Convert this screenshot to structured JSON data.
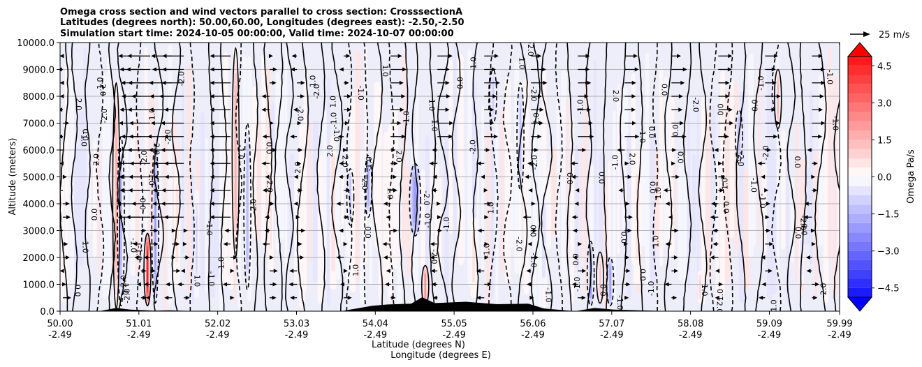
{
  "chart_data": {
    "type": "heatmap",
    "title_lines": [
      "Omega cross section and wind vectors parallel to cross section: CrosssectionA",
      "Latitudes (degrees north): 50.00,60.00, Longitudes (degrees east): -2.50,-2.50",
      "Simulation start time: 2024-10-05 00:00:00, Valid time: 2024-10-07 00:00:00"
    ],
    "ylabel": "Altitude (meters)",
    "xlabel_lines": [
      "Latitude (degrees N)",
      "Longitude (degrees E)"
    ],
    "ylim": [
      0,
      10000
    ],
    "xlim": [
      50.0,
      59.99
    ],
    "y_ticks": [
      0,
      1000,
      2000,
      3000,
      4000,
      5000,
      6000,
      7000,
      8000,
      9000,
      10000
    ],
    "y_tick_labels": [
      "0.0",
      "1000.0",
      "2000.0",
      "3000.0",
      "4000.0",
      "5000.0",
      "6000.0",
      "7000.0",
      "8000.0",
      "9000.0",
      "10000.0"
    ],
    "x_ticks": [
      50.0,
      51.01,
      52.02,
      53.03,
      54.04,
      55.05,
      56.06,
      57.07,
      58.08,
      59.09,
      59.99
    ],
    "x_tick_lat_labels": [
      "50.00",
      "51.01",
      "52.02",
      "53.03",
      "54.04",
      "55.05",
      "56.06",
      "57.07",
      "58.08",
      "59.09",
      "59.99"
    ],
    "x_tick_lon_labels": [
      "-2.49",
      "-2.49",
      "-2.49",
      "-2.49",
      "-2.49",
      "-2.49",
      "-2.49",
      "-2.49",
      "-2.49",
      "-2.49",
      "-2.49"
    ],
    "grid": "horizontal",
    "colorbar": {
      "label": "Omega Pa/s",
      "range": [
        -5.25,
        5.25
      ],
      "levels_step": 0.375,
      "tick_values": [
        4.5,
        3.0,
        1.5,
        0.0,
        -1.5,
        -3.0,
        -4.5
      ],
      "tick_labels": [
        "4.5",
        "3.0",
        "1.5",
        "0.0",
        "−1.5",
        "−3.0",
        "−4.5"
      ],
      "colormap": "bwr",
      "extend": "both"
    },
    "contour_labels": [
      "0.0",
      "1.0",
      "-1.0",
      "2.0",
      "-2.0"
    ],
    "wind_vector_key": "25 m/s",
    "terrain": [
      {
        "lat": 50.0,
        "alt": 0
      },
      {
        "lat": 50.5,
        "alt": 0
      },
      {
        "lat": 50.72,
        "alt": 120
      },
      {
        "lat": 50.9,
        "alt": 60
      },
      {
        "lat": 51.2,
        "alt": 20
      },
      {
        "lat": 51.4,
        "alt": 30
      },
      {
        "lat": 51.8,
        "alt": 0
      },
      {
        "lat": 53.6,
        "alt": 0
      },
      {
        "lat": 54.0,
        "alt": 200
      },
      {
        "lat": 54.2,
        "alt": 250
      },
      {
        "lat": 54.5,
        "alt": 280
      },
      {
        "lat": 54.64,
        "alt": 520
      },
      {
        "lat": 54.8,
        "alt": 300
      },
      {
        "lat": 55.2,
        "alt": 350
      },
      {
        "lat": 55.6,
        "alt": 260
      },
      {
        "lat": 56.0,
        "alt": 280
      },
      {
        "lat": 56.2,
        "alt": 100
      },
      {
        "lat": 56.6,
        "alt": 0
      },
      {
        "lat": 56.85,
        "alt": 120
      },
      {
        "lat": 57.1,
        "alt": 60
      },
      {
        "lat": 57.4,
        "alt": 30
      },
      {
        "lat": 57.9,
        "alt": 0
      },
      {
        "lat": 59.99,
        "alt": 0
      }
    ],
    "features": [
      {
        "lat": 50.72,
        "alt_min": 100,
        "alt_max": 8500,
        "omega": 1.5,
        "width": 0.07
      },
      {
        "lat": 50.78,
        "alt_min": 200,
        "alt_max": 6500,
        "omega": -1.8,
        "width": 0.05
      },
      {
        "lat": 51.12,
        "alt_min": 200,
        "alt_max": 2900,
        "omega": 4.8,
        "width": 0.05
      },
      {
        "lat": 51.22,
        "alt_min": 300,
        "alt_max": 6200,
        "omega": -2.0,
        "width": 0.05
      },
      {
        "lat": 51.5,
        "alt_min": 1000,
        "alt_max": 5500,
        "omega": 0.6,
        "width": 0.08
      },
      {
        "lat": 51.75,
        "alt_min": 500,
        "alt_max": 4500,
        "omega": -0.8,
        "width": 0.06
      },
      {
        "lat": 52.25,
        "alt_min": 2000,
        "alt_max": 9800,
        "omega": 1.6,
        "width": 0.07
      },
      {
        "lat": 52.4,
        "alt_min": 800,
        "alt_max": 7000,
        "omega": -1.5,
        "width": 0.06
      },
      {
        "lat": 52.7,
        "alt_min": 1500,
        "alt_max": 6000,
        "omega": 0.5,
        "width": 0.07
      },
      {
        "lat": 53.5,
        "alt_min": 800,
        "alt_max": 6500,
        "omega": 0.7,
        "width": 0.08
      },
      {
        "lat": 53.95,
        "alt_min": 3500,
        "alt_max": 5800,
        "omega": -1.8,
        "width": 0.07
      },
      {
        "lat": 53.72,
        "alt_min": 3200,
        "alt_max": 5300,
        "omega": -1.5,
        "width": 0.04
      },
      {
        "lat": 54.55,
        "alt_min": 2800,
        "alt_max": 5500,
        "omega": -2.2,
        "width": 0.13
      },
      {
        "lat": 54.68,
        "alt_min": 200,
        "alt_max": 1700,
        "omega": 2.4,
        "width": 0.05
      },
      {
        "lat": 55.3,
        "alt_min": 500,
        "alt_max": 3500,
        "omega": 0.6,
        "width": 0.08
      },
      {
        "lat": 55.55,
        "alt_min": 7000,
        "alt_max": 9000,
        "omega": -1.0,
        "width": 0.06
      },
      {
        "lat": 55.9,
        "alt_min": 4500,
        "alt_max": 8500,
        "omega": -1.2,
        "width": 0.06
      },
      {
        "lat": 56.2,
        "alt_min": 800,
        "alt_max": 4500,
        "omega": -0.7,
        "width": 0.08
      },
      {
        "lat": 56.8,
        "alt_min": 200,
        "alt_max": 2600,
        "omega": -2.6,
        "width": 0.05
      },
      {
        "lat": 56.92,
        "alt_min": 300,
        "alt_max": 2200,
        "omega": 1.2,
        "width": 0.04
      },
      {
        "lat": 57.05,
        "alt_min": 200,
        "alt_max": 2000,
        "omega": -2.0,
        "width": 0.05
      },
      {
        "lat": 57.4,
        "alt_min": 1000,
        "alt_max": 6000,
        "omega": 0.5,
        "width": 0.1
      },
      {
        "lat": 58.2,
        "alt_min": 300,
        "alt_max": 1500,
        "omega": 0.8,
        "width": 0.06
      },
      {
        "lat": 58.7,
        "alt_min": 5500,
        "alt_max": 7500,
        "omega": -1.4,
        "width": 0.07
      },
      {
        "lat": 59.2,
        "alt_min": 6800,
        "alt_max": 9000,
        "omega": 1.8,
        "width": 0.04
      },
      {
        "lat": 59.5,
        "alt_min": 1000,
        "alt_max": 3000,
        "omega": -0.6,
        "width": 0.07
      }
    ]
  }
}
